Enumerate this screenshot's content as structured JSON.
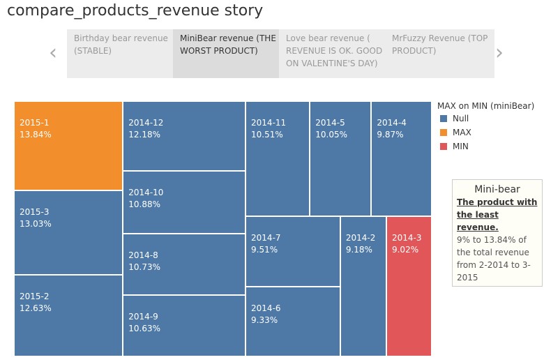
{
  "story": {
    "title": "compare_products_revenue story",
    "tabs": [
      "Birthday bear revenue (STABLE)",
      "MiniBear revenue (THE WORST PRODUCT)",
      "Love bear revenue ( REVENUE IS OK. GOOD ON VALENTINE'S DAY)",
      "MrFuzzy Revenue (TOP PRODUCT)"
    ]
  },
  "chart_data": {
    "type": "treemap",
    "labels": [
      "2015-1",
      "2015-3",
      "2015-2",
      "2014-12",
      "2014-10",
      "2014-8",
      "2014-9",
      "2014-11",
      "2014-5",
      "2014-4",
      "2014-7",
      "2014-6",
      "2014-2",
      "2014-3"
    ],
    "values": [
      13.84,
      13.03,
      12.63,
      12.18,
      10.88,
      10.73,
      10.63,
      10.51,
      10.05,
      9.87,
      9.51,
      9.33,
      9.18,
      9.02
    ],
    "value_labels": [
      "13.84%",
      "13.03%",
      "12.63%",
      "12.18%",
      "10.88%",
      "10.73%",
      "10.63%",
      "10.51%",
      "10.05%",
      "9.87%",
      "9.51%",
      "9.33%",
      "9.18%",
      "9.02%"
    ],
    "groups": [
      "MAX",
      "Null",
      "Null",
      "Null",
      "Null",
      "Null",
      "Null",
      "Null",
      "Null",
      "Null",
      "Null",
      "Null",
      "Null",
      "MIN"
    ],
    "legend": {
      "title": "MAX on MIN (miniBear)",
      "items": [
        {
          "name": "Null",
          "color": "#4e79a7"
        },
        {
          "name": "MAX",
          "color": "#f28e2b"
        },
        {
          "name": "MIN",
          "color": "#e15759"
        }
      ]
    },
    "annotation": {
      "title": "Mini-bear",
      "emphasis": "The product with the least revenue.",
      "text": "9% to 13.84% of the total revenue from 2-2014 to 3-2015"
    }
  }
}
